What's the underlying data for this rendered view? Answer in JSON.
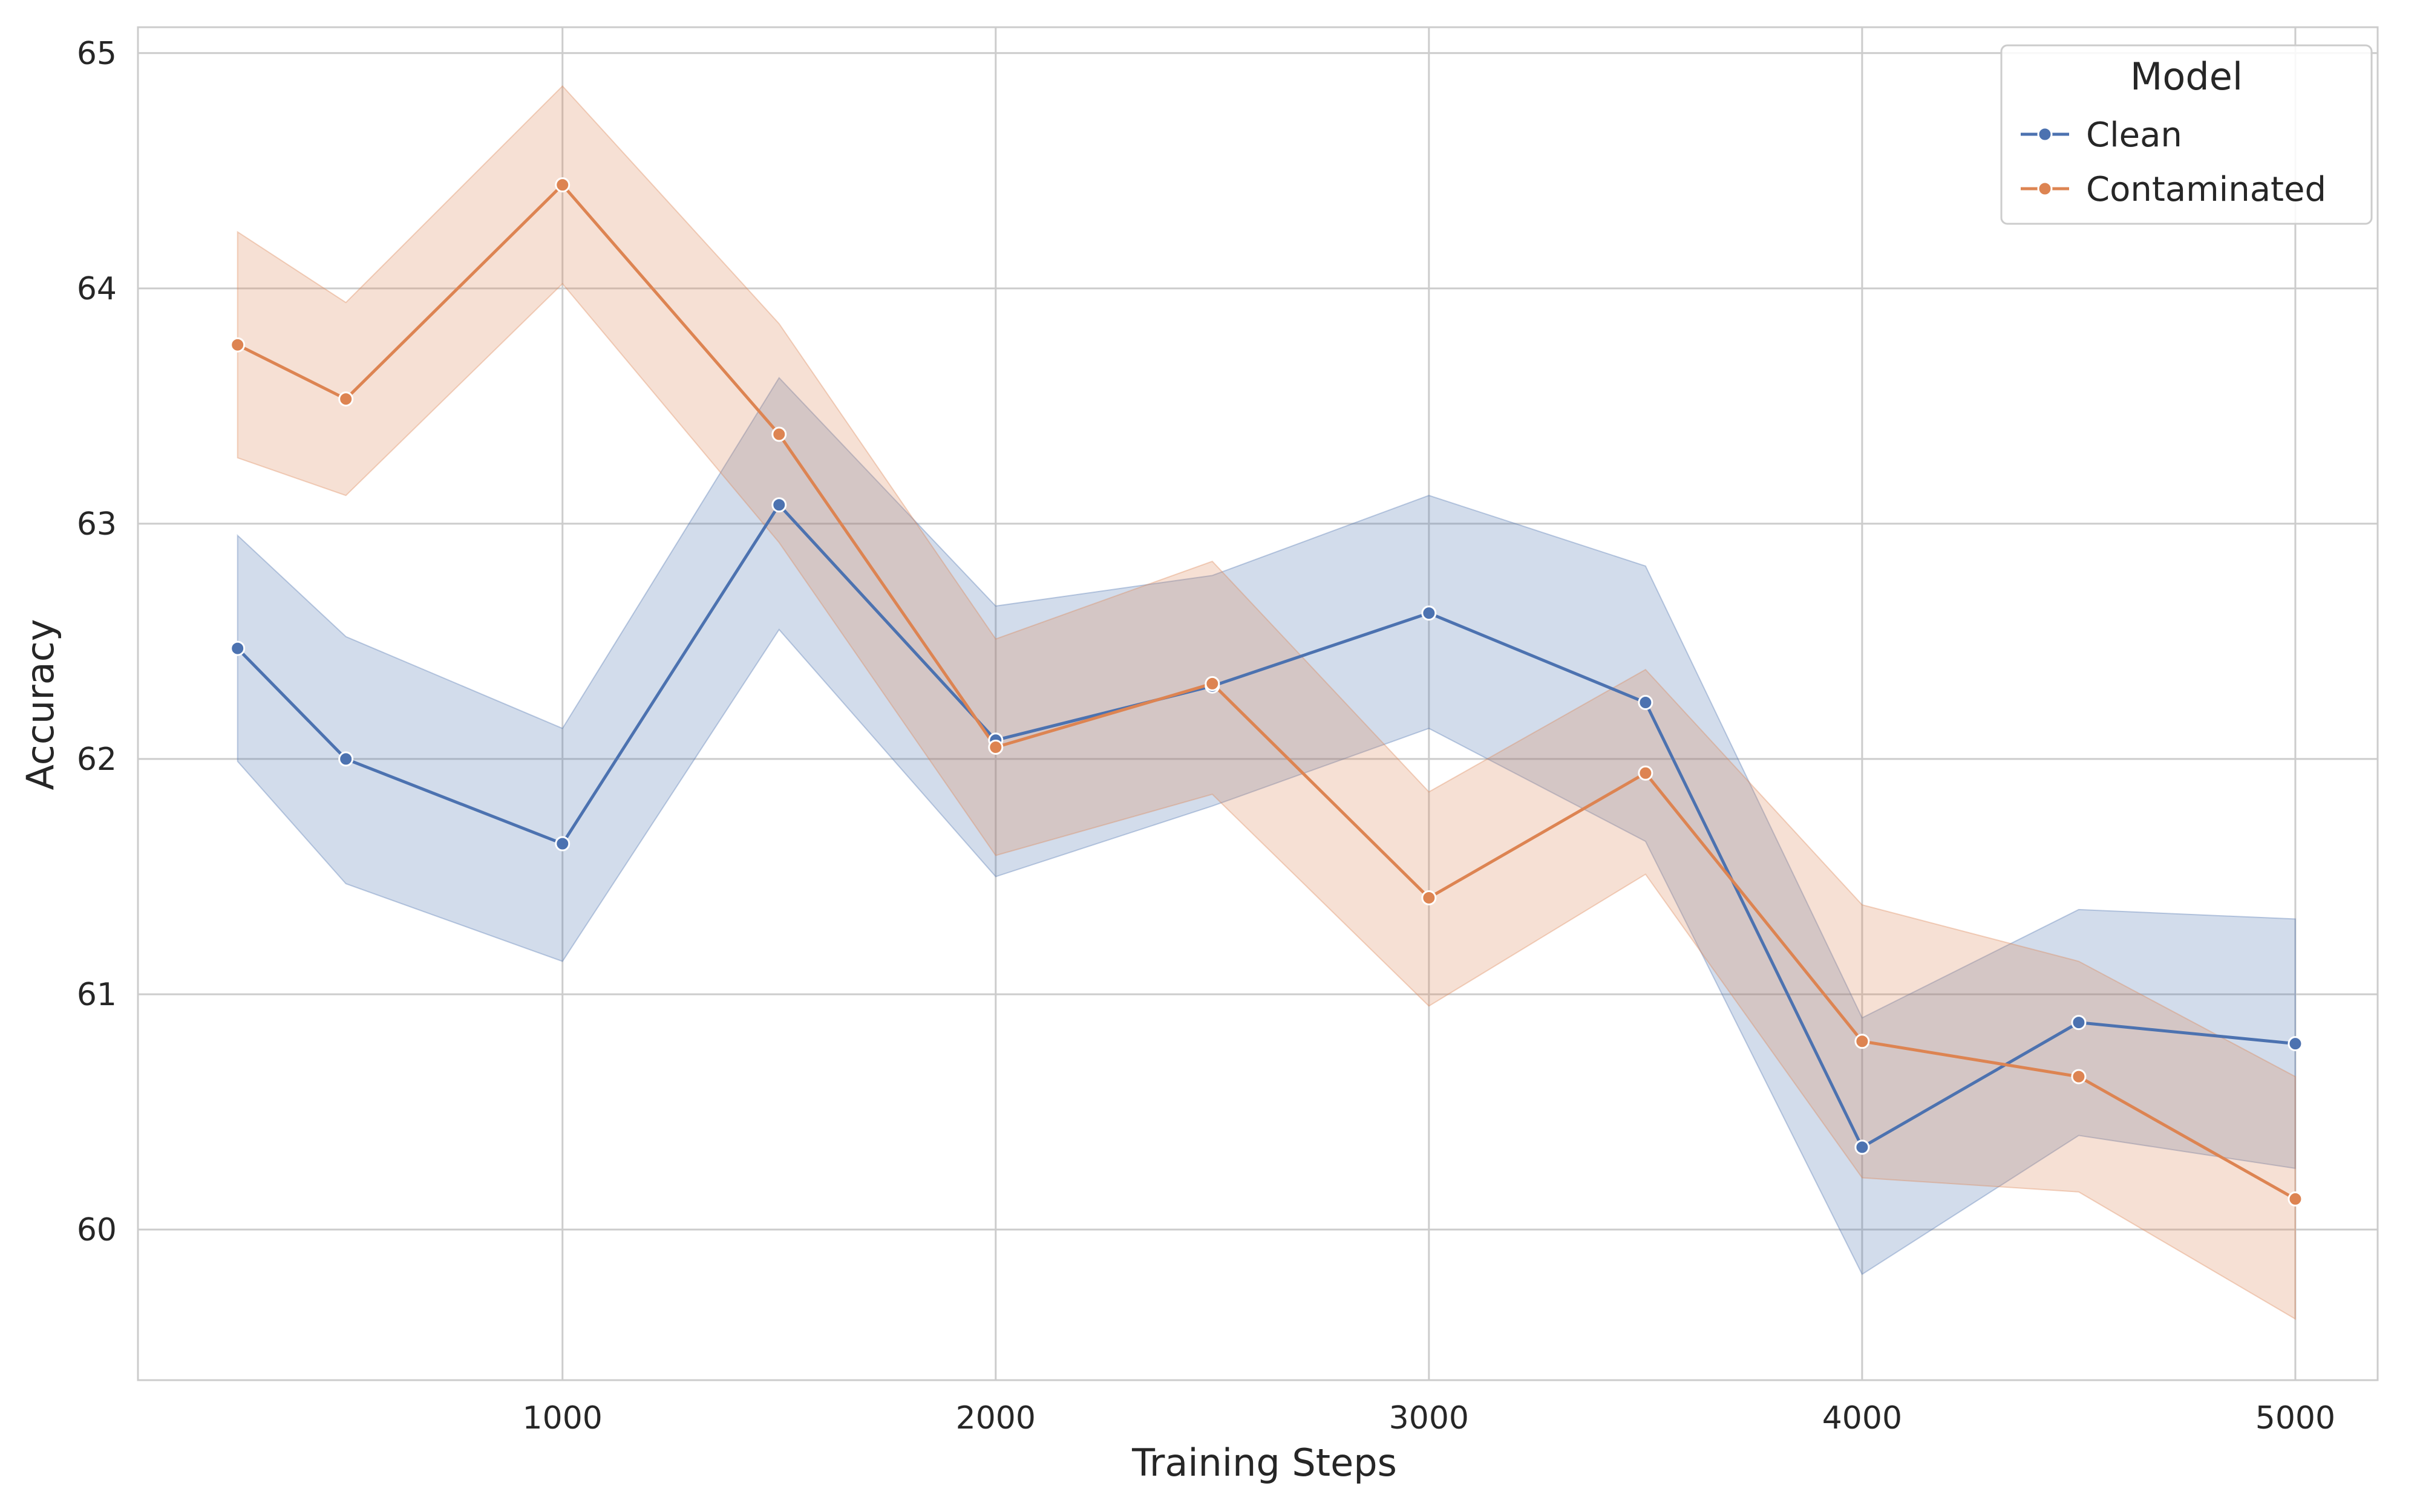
{
  "chart_data": {
    "type": "line",
    "xlabel": "Training Steps",
    "ylabel": "Accuracy",
    "xlim": [
      20,
      5190
    ],
    "ylim": [
      59.36,
      65.11
    ],
    "x_ticks": [
      1000,
      2000,
      3000,
      4000,
      5000
    ],
    "y_ticks": [
      60,
      61,
      62,
      63,
      64,
      65
    ],
    "x_tick_labels": [
      "1000",
      "2000",
      "3000",
      "4000",
      "5000"
    ],
    "y_tick_labels": [
      "60",
      "61",
      "62",
      "63",
      "64",
      "65"
    ],
    "grid": true,
    "legend": {
      "title": "Model",
      "placement": "top-right"
    },
    "x": [
      250,
      500,
      1000,
      1500,
      2000,
      2500,
      3000,
      3500,
      4000,
      4500,
      5000
    ],
    "series": [
      {
        "name": "Clean",
        "color": "#4c72b0",
        "values": [
          62.47,
          62.0,
          61.64,
          63.08,
          62.08,
          62.31,
          62.62,
          62.24,
          60.35,
          60.88,
          60.79
        ],
        "ci_lower": [
          61.99,
          61.47,
          61.14,
          62.55,
          61.5,
          61.8,
          62.13,
          61.65,
          59.81,
          60.4,
          60.26
        ],
        "ci_upper": [
          62.95,
          62.52,
          62.13,
          63.62,
          62.65,
          62.78,
          63.12,
          62.82,
          60.9,
          61.36,
          61.32
        ]
      },
      {
        "name": "Contaminated",
        "color": "#dd8452",
        "values": [
          63.76,
          63.53,
          64.44,
          63.38,
          62.05,
          62.32,
          61.41,
          61.94,
          60.8,
          60.65,
          60.13
        ],
        "ci_lower": [
          63.28,
          63.12,
          64.02,
          62.92,
          61.59,
          61.85,
          60.95,
          61.51,
          60.22,
          60.16,
          59.62
        ],
        "ci_upper": [
          64.24,
          63.94,
          64.86,
          63.85,
          62.51,
          62.84,
          61.86,
          62.38,
          61.38,
          61.14,
          60.65
        ]
      }
    ]
  }
}
